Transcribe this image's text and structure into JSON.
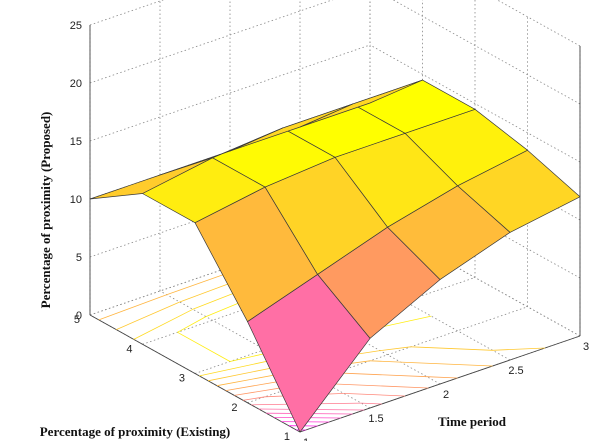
{
  "chart_data": {
    "type": "surface",
    "title": "",
    "xlabel": "Time period",
    "ylabel": "Percentage of proximity (Existing)",
    "zlabel": "Percentage of proximity (Proposed)",
    "x": [
      1,
      1.5,
      2,
      2.5,
      3
    ],
    "y": [
      1,
      2,
      3,
      4,
      5
    ],
    "z": [
      [
        0,
        6,
        9,
        11,
        12
      ],
      [
        7,
        9,
        11,
        12.5,
        13.5
      ],
      [
        13,
        14,
        14.5,
        14.5,
        14.5
      ],
      [
        13,
        14,
        14.5,
        14.5,
        14.5
      ],
      [
        10,
        10,
        10,
        10,
        10
      ]
    ],
    "xticks": [
      "1",
      "1.5",
      "2",
      "2.5",
      "3"
    ],
    "yticks": [
      "1",
      "2",
      "3",
      "4",
      "5"
    ],
    "zticks": [
      "0",
      "5",
      "10",
      "15",
      "20",
      "25"
    ],
    "xlim": [
      1,
      3
    ],
    "ylim": [
      1,
      5
    ],
    "zlim": [
      0,
      25
    ],
    "colormap": [
      "#ff00ff",
      "#ff66b3",
      "#ffa64d",
      "#ffff00"
    ],
    "grid": true,
    "contour_projection": true
  }
}
